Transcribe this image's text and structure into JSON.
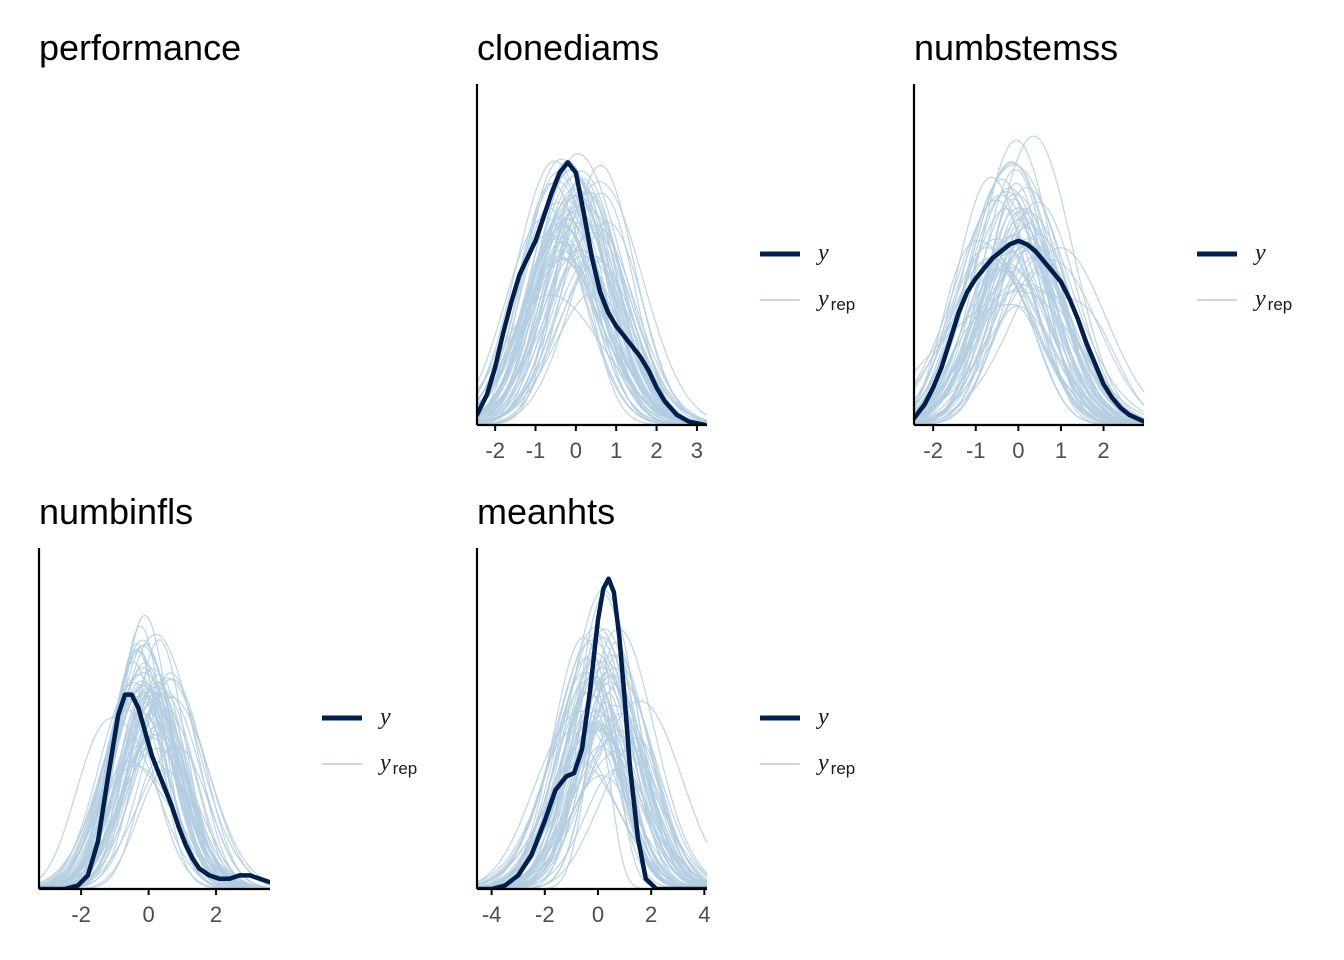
{
  "colors": {
    "y": "#011f4b",
    "yrep": "#b3cde0",
    "axis": "#000000",
    "tick_text": "#4d4d4d"
  },
  "legend": {
    "y_label": "y",
    "yrep_label": "y",
    "yrep_sub": "rep"
  },
  "chart_data": [
    {
      "type": "line",
      "title": "performance",
      "empty": true
    },
    {
      "type": "line",
      "title": "clonediams",
      "xlim": [
        -2.45,
        3.25
      ],
      "ylim": [
        0,
        1
      ],
      "xticks": [
        -2,
        -1,
        0,
        1,
        2,
        3
      ],
      "xtick_labels": [
        "-2",
        "-1",
        "0",
        "1",
        "2",
        "3"
      ],
      "y_series": {
        "name": "y",
        "x": [
          -2.45,
          -2.2,
          -2.0,
          -1.8,
          -1.6,
          -1.4,
          -1.2,
          -1.0,
          -0.8,
          -0.6,
          -0.4,
          -0.2,
          0.0,
          0.2,
          0.4,
          0.6,
          0.8,
          1.0,
          1.2,
          1.4,
          1.6,
          1.8,
          2.0,
          2.2,
          2.5,
          2.8,
          3.2
        ],
        "y": [
          0.03,
          0.09,
          0.17,
          0.27,
          0.36,
          0.44,
          0.49,
          0.54,
          0.61,
          0.68,
          0.74,
          0.77,
          0.74,
          0.62,
          0.49,
          0.39,
          0.33,
          0.29,
          0.26,
          0.23,
          0.2,
          0.16,
          0.11,
          0.07,
          0.03,
          0.01,
          0.0
        ]
      },
      "yrep": {
        "count": 60,
        "center_mean": 0.0,
        "center_sd": 0.25,
        "scale_mean": 0.95,
        "scale_sd": 0.12,
        "peak_mean": 0.66,
        "peak_sd": 0.1,
        "peak_max": 1.0
      }
    },
    {
      "type": "line",
      "title": "numbstemss",
      "xlim": [
        -2.45,
        2.95
      ],
      "ylim": [
        0,
        1
      ],
      "xticks": [
        -2,
        -1,
        0,
        1,
        2
      ],
      "xtick_labels": [
        "-2",
        "-1",
        "0",
        "1",
        "2"
      ],
      "y_series": {
        "name": "y",
        "x": [
          -2.45,
          -2.2,
          -2.0,
          -1.8,
          -1.6,
          -1.4,
          -1.2,
          -1.0,
          -0.8,
          -0.6,
          -0.4,
          -0.2,
          0.0,
          0.2,
          0.4,
          0.6,
          0.8,
          1.0,
          1.2,
          1.4,
          1.6,
          1.8,
          2.0,
          2.2,
          2.4,
          2.6,
          2.95
        ],
        "y": [
          0.02,
          0.06,
          0.11,
          0.17,
          0.25,
          0.33,
          0.39,
          0.43,
          0.46,
          0.49,
          0.51,
          0.53,
          0.54,
          0.53,
          0.51,
          0.48,
          0.45,
          0.42,
          0.37,
          0.31,
          0.24,
          0.18,
          0.12,
          0.08,
          0.05,
          0.03,
          0.01
        ]
      },
      "yrep": {
        "count": 60,
        "center_mean": 0.0,
        "center_sd": 0.22,
        "scale_mean": 0.95,
        "scale_sd": 0.12,
        "peak_mean": 0.62,
        "peak_sd": 0.1,
        "peak_max": 1.0
      }
    },
    {
      "type": "line",
      "title": "numbinfls",
      "xlim": [
        -3.25,
        3.6
      ],
      "ylim": [
        0,
        1
      ],
      "xticks": [
        -2,
        0,
        2
      ],
      "xtick_labels": [
        "-2",
        "0",
        "2"
      ],
      "y_series": {
        "name": "y",
        "x": [
          -3.25,
          -2.5,
          -2.1,
          -1.8,
          -1.5,
          -1.2,
          -0.9,
          -0.7,
          -0.5,
          -0.3,
          -0.1,
          0.1,
          0.3,
          0.5,
          0.7,
          0.9,
          1.1,
          1.3,
          1.5,
          1.8,
          2.1,
          2.4,
          2.7,
          3.0,
          3.3,
          3.6
        ],
        "y": [
          0.0,
          0.0,
          0.01,
          0.04,
          0.14,
          0.33,
          0.51,
          0.57,
          0.57,
          0.53,
          0.46,
          0.39,
          0.34,
          0.29,
          0.24,
          0.18,
          0.13,
          0.09,
          0.06,
          0.04,
          0.03,
          0.03,
          0.04,
          0.04,
          0.03,
          0.02
        ]
      },
      "yrep": {
        "count": 60,
        "center_mean": 0.0,
        "center_sd": 0.25,
        "scale_mean": 0.95,
        "scale_sd": 0.12,
        "peak_mean": 0.58,
        "peak_sd": 0.11,
        "peak_max": 1.0
      }
    },
    {
      "type": "line",
      "title": "meanhts",
      "xlim": [
        -4.55,
        4.1
      ],
      "ylim": [
        0,
        1
      ],
      "xticks": [
        -4,
        -2,
        0,
        2,
        4
      ],
      "xtick_labels": [
        "-4",
        "-2",
        "0",
        "2",
        "4"
      ],
      "y_series": {
        "name": "y",
        "x": [
          -4.55,
          -4.0,
          -3.5,
          -3.0,
          -2.5,
          -2.0,
          -1.6,
          -1.2,
          -0.9,
          -0.6,
          -0.3,
          0.0,
          0.2,
          0.4,
          0.6,
          0.8,
          1.0,
          1.2,
          1.5,
          1.8,
          2.2,
          2.6,
          3.2,
          4.1
        ],
        "y": [
          0.0,
          0.0,
          0.01,
          0.04,
          0.1,
          0.2,
          0.29,
          0.33,
          0.34,
          0.41,
          0.58,
          0.79,
          0.88,
          0.91,
          0.87,
          0.74,
          0.56,
          0.36,
          0.15,
          0.03,
          0.0,
          0.0,
          0.0,
          0.0
        ]
      },
      "yrep": {
        "count": 60,
        "center_mean": 0.0,
        "center_sd": 0.35,
        "scale_mean": 1.35,
        "scale_sd": 0.2,
        "peak_mean": 0.6,
        "peak_sd": 0.12,
        "peak_max": 1.0
      }
    }
  ]
}
